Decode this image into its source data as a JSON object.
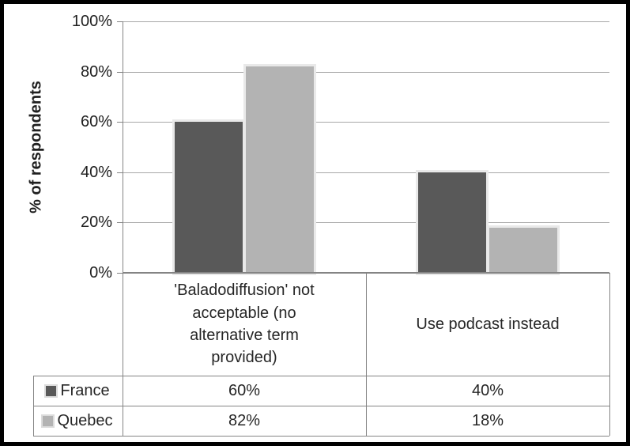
{
  "chart_data": {
    "type": "bar",
    "title": "",
    "ylabel": "% of respondents",
    "xlabel": "",
    "ylim": [
      0,
      100
    ],
    "grid": true,
    "legend_position": "data-table-left",
    "yticks": [
      {
        "value": 100,
        "label": "100%"
      },
      {
        "value": 80,
        "label": "80%"
      },
      {
        "value": 60,
        "label": "60%"
      },
      {
        "value": 40,
        "label": "40%"
      },
      {
        "value": 20,
        "label": "20%"
      },
      {
        "value": 0,
        "label": "0%"
      }
    ],
    "categories": [
      "'Baladodiffusion' not acceptable (no alternative term provided)",
      "Use podcast instead"
    ],
    "series": [
      {
        "name": "France",
        "color": "#595959",
        "values": [
          60,
          40
        ]
      },
      {
        "name": "Quebec",
        "color": "#b3b3b3",
        "values": [
          82,
          18
        ]
      }
    ],
    "value_suffix": "%",
    "data_table": {
      "rows": [
        {
          "name": "France",
          "cells": [
            "60%",
            "40%"
          ]
        },
        {
          "name": "Quebec",
          "cells": [
            "82%",
            "18%"
          ]
        }
      ]
    },
    "colors": {
      "gridline": "#a8a8a8",
      "axis_and_table_lines": "#848484",
      "bar_glow": "#e9e9e9",
      "text": "#1f1f1f",
      "frame_border": "#000000",
      "background": "#ffffff"
    }
  }
}
